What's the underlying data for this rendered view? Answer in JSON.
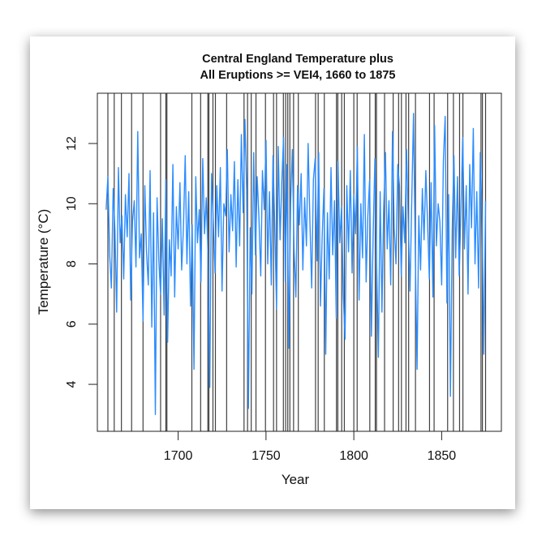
{
  "chart_data": {
    "type": "line",
    "title_line1": "Central England Temperature plus",
    "title_line2": "All Eruptions >= VEI4, 1660 to 1875",
    "xlabel": "Year",
    "ylabel": "Temperature (°C)",
    "xlim": [
      1654,
      1884
    ],
    "ylim": [
      2.44,
      13.67
    ],
    "xticks": [
      1700,
      1750,
      1800,
      1850
    ],
    "yticks": [
      4,
      6,
      8,
      10,
      12
    ],
    "series_color": "#2b8cff",
    "eruption_color": "#000000",
    "series": [
      {
        "name": "Central England Temperature",
        "x_start": 1659,
        "x_step": 1,
        "values": [
          9.8,
          10.9,
          8.3,
          7.2,
          10.5,
          9.1,
          6.4,
          11.2,
          8.7,
          9.6,
          7.5,
          10.3,
          8.9,
          11.0,
          6.8,
          9.4,
          10.1,
          7.9,
          12.4,
          8.2,
          9.0,
          6.1,
          10.6,
          8.4,
          7.3,
          11.1,
          5.9,
          9.7,
          3.0,
          10.2,
          8.1,
          7.0,
          9.5,
          6.3,
          10.8,
          5.4,
          8.8,
          7.6,
          11.3,
          6.9,
          9.9,
          8.5,
          10.7,
          7.8,
          9.2,
          11.6,
          8.0,
          10.4,
          6.6,
          9.3,
          4.5,
          10.9,
          8.7,
          9.8,
          7.4,
          11.5,
          9.0,
          10.2,
          8.3,
          3.9,
          11.0,
          9.4,
          7.7,
          10.6,
          8.9,
          11.2,
          7.1,
          10.0,
          9.6,
          11.8,
          8.4,
          10.3,
          9.1,
          11.4,
          7.9,
          10.8,
          8.6,
          12.3,
          9.7,
          12.8,
          10.5,
          3.2,
          9.2,
          7.0,
          11.7,
          8.3,
          10.9,
          9.5,
          7.6,
          11.1,
          9.8,
          12.1,
          8.0,
          10.4,
          7.3,
          11.6,
          9.2,
          6.5,
          11.9,
          8.8,
          10.7,
          12.2,
          7.4,
          11.3,
          5.2,
          10.0,
          11.8,
          8.5,
          6.9,
          10.6,
          9.3,
          11.0,
          7.8,
          10.2,
          8.6,
          12.0,
          9.4,
          7.2,
          10.8,
          11.5,
          8.1,
          11.7,
          6.6,
          8.9,
          10.5,
          5.0,
          9.7,
          7.5,
          11.2,
          8.3,
          10.1,
          6.2,
          11.4,
          8.7,
          9.9,
          7.0,
          5.5,
          10.6,
          8.4,
          11.1,
          7.7,
          10.3,
          9.0,
          11.9,
          6.8,
          10.0,
          8.2,
          12.3,
          7.4,
          9.6,
          10.8,
          5.6,
          8.9,
          11.5,
          7.9,
          4.9,
          10.4,
          6.4,
          9.8,
          11.7,
          8.5,
          10.1,
          7.3,
          12.4,
          9.2,
          8.0,
          11.3,
          10.6,
          7.6,
          9.9,
          8.7,
          11.8,
          9.4,
          7.1,
          10.2,
          13.0,
          8.3,
          4.5,
          9.6,
          7.8,
          10.5,
          8.8,
          11.1,
          9.3,
          7.5,
          10.7,
          6.9,
          12.6,
          8.6,
          10.0,
          9.4,
          7.3,
          11.4,
          12.9,
          6.7,
          10.3,
          3.6,
          9.1,
          11.6,
          8.2,
          10.9,
          7.6,
          9.8,
          12.2,
          8.5,
          10.6,
          7.0,
          11.3,
          9.2,
          12.5,
          8.0,
          10.4,
          7.2,
          11.7,
          9.5,
          5.0,
          10.1
        ]
      }
    ],
    "eruption_years": [
      1660,
      1663.6,
      1667.7,
      1673.5,
      1680,
      1690,
      1693,
      1693.6,
      1707.8,
      1712.8,
      1716.9,
      1717.5,
      1719.8,
      1721.2,
      1727.6,
      1737.5,
      1739.5,
      1741.6,
      1744.3,
      1749.7,
      1754.3,
      1756,
      1759.9,
      1761.2,
      1762.4,
      1763.6,
      1765.7,
      1768.4,
      1778.2,
      1779.7,
      1783.2,
      1790.1,
      1790.9,
      1793.1,
      1794.6,
      1800,
      1801.9,
      1809.1,
      1812.2,
      1812.9,
      1817.5,
      1822.4,
      1825.5,
      1827.1,
      1829.7,
      1831.2,
      1835.1,
      1843.1,
      1845.7,
      1853.4,
      1856.7,
      1860.2,
      1862.1,
      1872.4,
      1873.2,
      1875
    ]
  }
}
